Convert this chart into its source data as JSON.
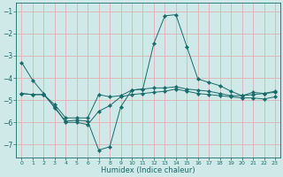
{
  "xlabel": "Humidex (Indice chaleur)",
  "ylabel": "",
  "background_color": "#cfe8e8",
  "grid_color": "#e0b0b0",
  "line_color": "#1a6b6b",
  "xlim": [
    -0.5,
    23.5
  ],
  "ylim": [
    -7.6,
    -0.6
  ],
  "yticks": [
    -7,
    -6,
    -5,
    -4,
    -3,
    -2,
    -1
  ],
  "xticks": [
    0,
    1,
    2,
    3,
    4,
    5,
    6,
    7,
    8,
    9,
    10,
    11,
    12,
    13,
    14,
    15,
    16,
    17,
    18,
    19,
    20,
    21,
    22,
    23
  ],
  "line1_x": [
    0,
    1,
    2,
    3,
    4,
    5,
    6,
    7,
    8,
    9,
    10,
    11,
    12,
    13,
    14,
    15,
    16,
    17,
    18,
    19,
    20,
    21,
    22,
    23
  ],
  "line1_y": [
    -3.3,
    -4.1,
    -4.7,
    -5.35,
    -5.95,
    -5.9,
    -5.95,
    -7.25,
    -7.1,
    -5.3,
    -4.55,
    -4.5,
    -2.45,
    -1.2,
    -1.15,
    -2.6,
    -4.05,
    -4.2,
    -4.35,
    -4.6,
    -4.8,
    -4.65,
    -4.7,
    -4.65
  ],
  "line2_x": [
    0,
    1,
    2,
    3,
    4,
    5,
    6,
    7,
    8,
    9,
    10,
    11,
    12,
    13,
    14,
    15,
    16,
    17,
    18,
    19,
    20,
    21,
    22,
    23
  ],
  "line2_y": [
    -4.7,
    -4.75,
    -4.75,
    -5.2,
    -5.8,
    -5.8,
    -5.8,
    -4.75,
    -4.85,
    -4.8,
    -4.55,
    -4.5,
    -4.45,
    -4.45,
    -4.4,
    -4.5,
    -4.55,
    -4.6,
    -4.7,
    -4.8,
    -4.8,
    -4.75,
    -4.7,
    -4.6
  ],
  "line3_x": [
    0,
    1,
    2,
    3,
    4,
    5,
    6,
    7,
    8,
    9,
    10,
    11,
    12,
    13,
    14,
    15,
    16,
    17,
    18,
    19,
    20,
    21,
    22,
    23
  ],
  "line3_y": [
    -4.7,
    -4.75,
    -4.75,
    -5.3,
    -6.0,
    -6.0,
    -6.1,
    -5.5,
    -5.25,
    -4.85,
    -4.75,
    -4.7,
    -4.65,
    -4.6,
    -4.5,
    -4.6,
    -4.7,
    -4.75,
    -4.8,
    -4.85,
    -4.9,
    -4.9,
    -4.95,
    -4.85
  ]
}
